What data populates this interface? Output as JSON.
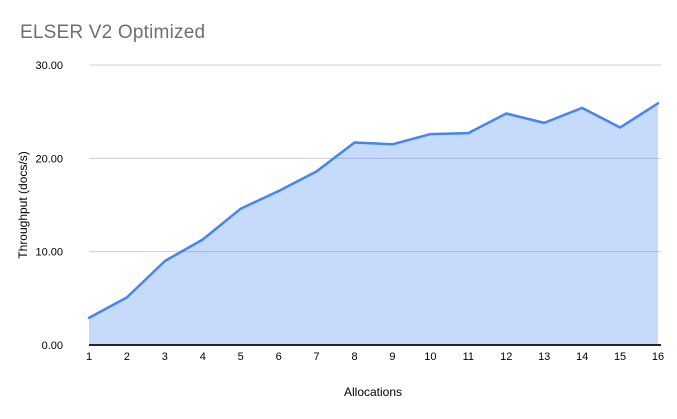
{
  "chart_data": {
    "type": "area",
    "title": "ELSER V2 Optimized",
    "xlabel": "Allocations",
    "ylabel": "Throughput (docs/s)",
    "categories": [
      1,
      2,
      3,
      4,
      5,
      6,
      7,
      8,
      9,
      10,
      11,
      12,
      13,
      14,
      15,
      16
    ],
    "series": [
      {
        "values": [
          2.9,
          5.1,
          9.0,
          11.3,
          14.6,
          16.5,
          18.6,
          21.7,
          21.5,
          22.6,
          22.7,
          24.8,
          23.8,
          25.4,
          23.3,
          25.9
        ]
      }
    ],
    "ylim": [
      0,
      30
    ],
    "yticks": [
      {
        "value": 0,
        "label": "0.00"
      },
      {
        "value": 10,
        "label": "10.00"
      },
      {
        "value": 20,
        "label": "20.00"
      },
      {
        "value": 30,
        "label": "30.00"
      }
    ],
    "grid": true,
    "legend": "none",
    "colors": {
      "line": "#4285f4",
      "fill_rgba": "rgba(66,133,244,0.30)",
      "axis_line": "#24262b",
      "gridline": "#cfcfcf",
      "title_text": "#6f6f6f",
      "tick_text": "#000000",
      "axis_title_text": "#000000",
      "background": "#ffffff"
    }
  }
}
